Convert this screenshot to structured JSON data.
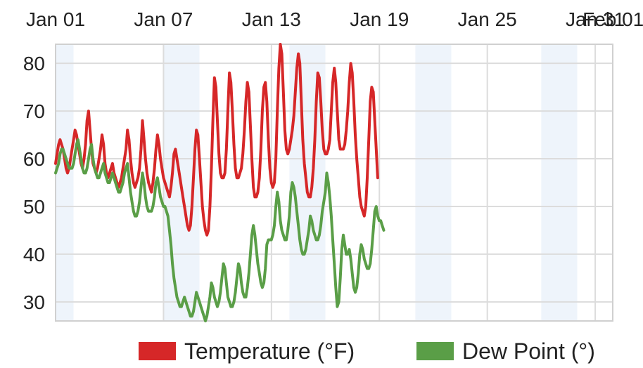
{
  "chart_data": {
    "type": "line",
    "title": "",
    "xlabel": "",
    "ylabel": "",
    "x_tick_labels": [
      "Jan 01",
      "Jan 07",
      "Jan 13",
      "Jan 19",
      "Jan 25",
      "Jan 31",
      "Feb 01"
    ],
    "y_ticks": [
      30,
      40,
      50,
      60,
      70,
      80
    ],
    "ylim": [
      26,
      84
    ],
    "xlim_days": [
      1,
      32
    ],
    "grid": true,
    "legend_position": "bottom",
    "series": [
      {
        "name": "Temperature (°F)",
        "color": "#d62728",
        "values": [
          59,
          61,
          63,
          64,
          63,
          62,
          60,
          58,
          57,
          58,
          60,
          62,
          64,
          66,
          65,
          63,
          61,
          59,
          58,
          60,
          63,
          68,
          70,
          66,
          62,
          59,
          58,
          57,
          58,
          60,
          62,
          65,
          63,
          59,
          57,
          56,
          57,
          58,
          59,
          57,
          56,
          55,
          54,
          55,
          56,
          58,
          60,
          62,
          66,
          64,
          60,
          57,
          55,
          54,
          55,
          56,
          58,
          62,
          68,
          64,
          60,
          57,
          55,
          54,
          53,
          55,
          58,
          62,
          65,
          63,
          60,
          58,
          56,
          55,
          54,
          53,
          52,
          54,
          57,
          61,
          62,
          60,
          58,
          56,
          54,
          52,
          50,
          48,
          46,
          45,
          46,
          50,
          56,
          62,
          66,
          65,
          60,
          55,
          50,
          47,
          45,
          44,
          45,
          50,
          58,
          68,
          77,
          75,
          68,
          61,
          57,
          56,
          56,
          57,
          62,
          70,
          78,
          76,
          70,
          63,
          58,
          56,
          56,
          57,
          58,
          61,
          66,
          72,
          76,
          74,
          67,
          60,
          54,
          52,
          52,
          53,
          56,
          62,
          70,
          75,
          76,
          72,
          64,
          58,
          55,
          54,
          55,
          60,
          70,
          79,
          84,
          82,
          74,
          66,
          62,
          61,
          62,
          64,
          66,
          69,
          74,
          79,
          82,
          80,
          72,
          64,
          59,
          56,
          53,
          52,
          52,
          54,
          58,
          64,
          72,
          78,
          77,
          72,
          66,
          62,
          61,
          61,
          62,
          64,
          70,
          76,
          79,
          76,
          70,
          64,
          62,
          62,
          62,
          63,
          66,
          70,
          76,
          80,
          78,
          72,
          65,
          60,
          56,
          52,
          50,
          49,
          48,
          50,
          56,
          64,
          72,
          75,
          74,
          68,
          62,
          56
        ],
        "x_start": 1,
        "x_step": 0.0833
      },
      {
        "name": "Dew Point (°)",
        "color": "#5a9e47",
        "values": [
          57,
          58,
          59,
          61,
          62,
          62,
          61,
          60,
          59,
          58,
          58,
          58,
          59,
          61,
          63,
          64,
          62,
          60,
          58,
          57,
          57,
          58,
          60,
          62,
          63,
          60,
          58,
          57,
          56,
          56,
          57,
          58,
          59,
          57,
          56,
          55,
          55,
          56,
          57,
          56,
          55,
          54,
          53,
          53,
          54,
          55,
          57,
          58,
          59,
          56,
          53,
          51,
          49,
          48,
          48,
          49,
          51,
          54,
          57,
          55,
          52,
          50,
          49,
          49,
          49,
          50,
          52,
          55,
          56,
          54,
          52,
          51,
          50,
          50,
          49,
          48,
          45,
          42,
          38,
          35,
          33,
          31,
          30,
          29,
          29,
          30,
          31,
          30,
          29,
          28,
          27,
          27,
          28,
          30,
          32,
          31,
          30,
          29,
          28,
          27,
          26,
          27,
          29,
          31,
          34,
          33,
          31,
          30,
          29,
          30,
          32,
          35,
          38,
          37,
          34,
          31,
          30,
          29,
          29,
          30,
          32,
          35,
          38,
          37,
          34,
          32,
          31,
          31,
          33,
          36,
          40,
          44,
          46,
          44,
          41,
          38,
          36,
          34,
          33,
          34,
          37,
          42,
          43,
          43,
          43,
          44,
          46,
          50,
          53,
          51,
          47,
          45,
          44,
          43,
          43,
          45,
          48,
          53,
          55,
          54,
          52,
          49,
          46,
          43,
          41,
          40,
          40,
          41,
          43,
          45,
          48,
          47,
          45,
          44,
          43,
          43,
          44,
          46,
          49,
          51,
          53,
          57,
          55,
          52,
          48,
          43,
          38,
          33,
          29,
          30,
          35,
          41,
          44,
          42,
          40,
          40,
          41,
          39,
          36,
          33,
          32,
          33,
          36,
          40,
          42,
          41,
          39,
          38,
          37,
          37,
          38,
          41,
          45,
          49,
          50,
          48,
          47,
          47,
          46,
          45
        ],
        "x_start": 1,
        "x_step": 0.0833
      }
    ]
  },
  "legend": {
    "temperature_label": "Temperature (°F)",
    "dew_point_label": "Dew Point (°)",
    "temperature_color": "#d62728",
    "dew_point_color": "#5a9e47"
  }
}
